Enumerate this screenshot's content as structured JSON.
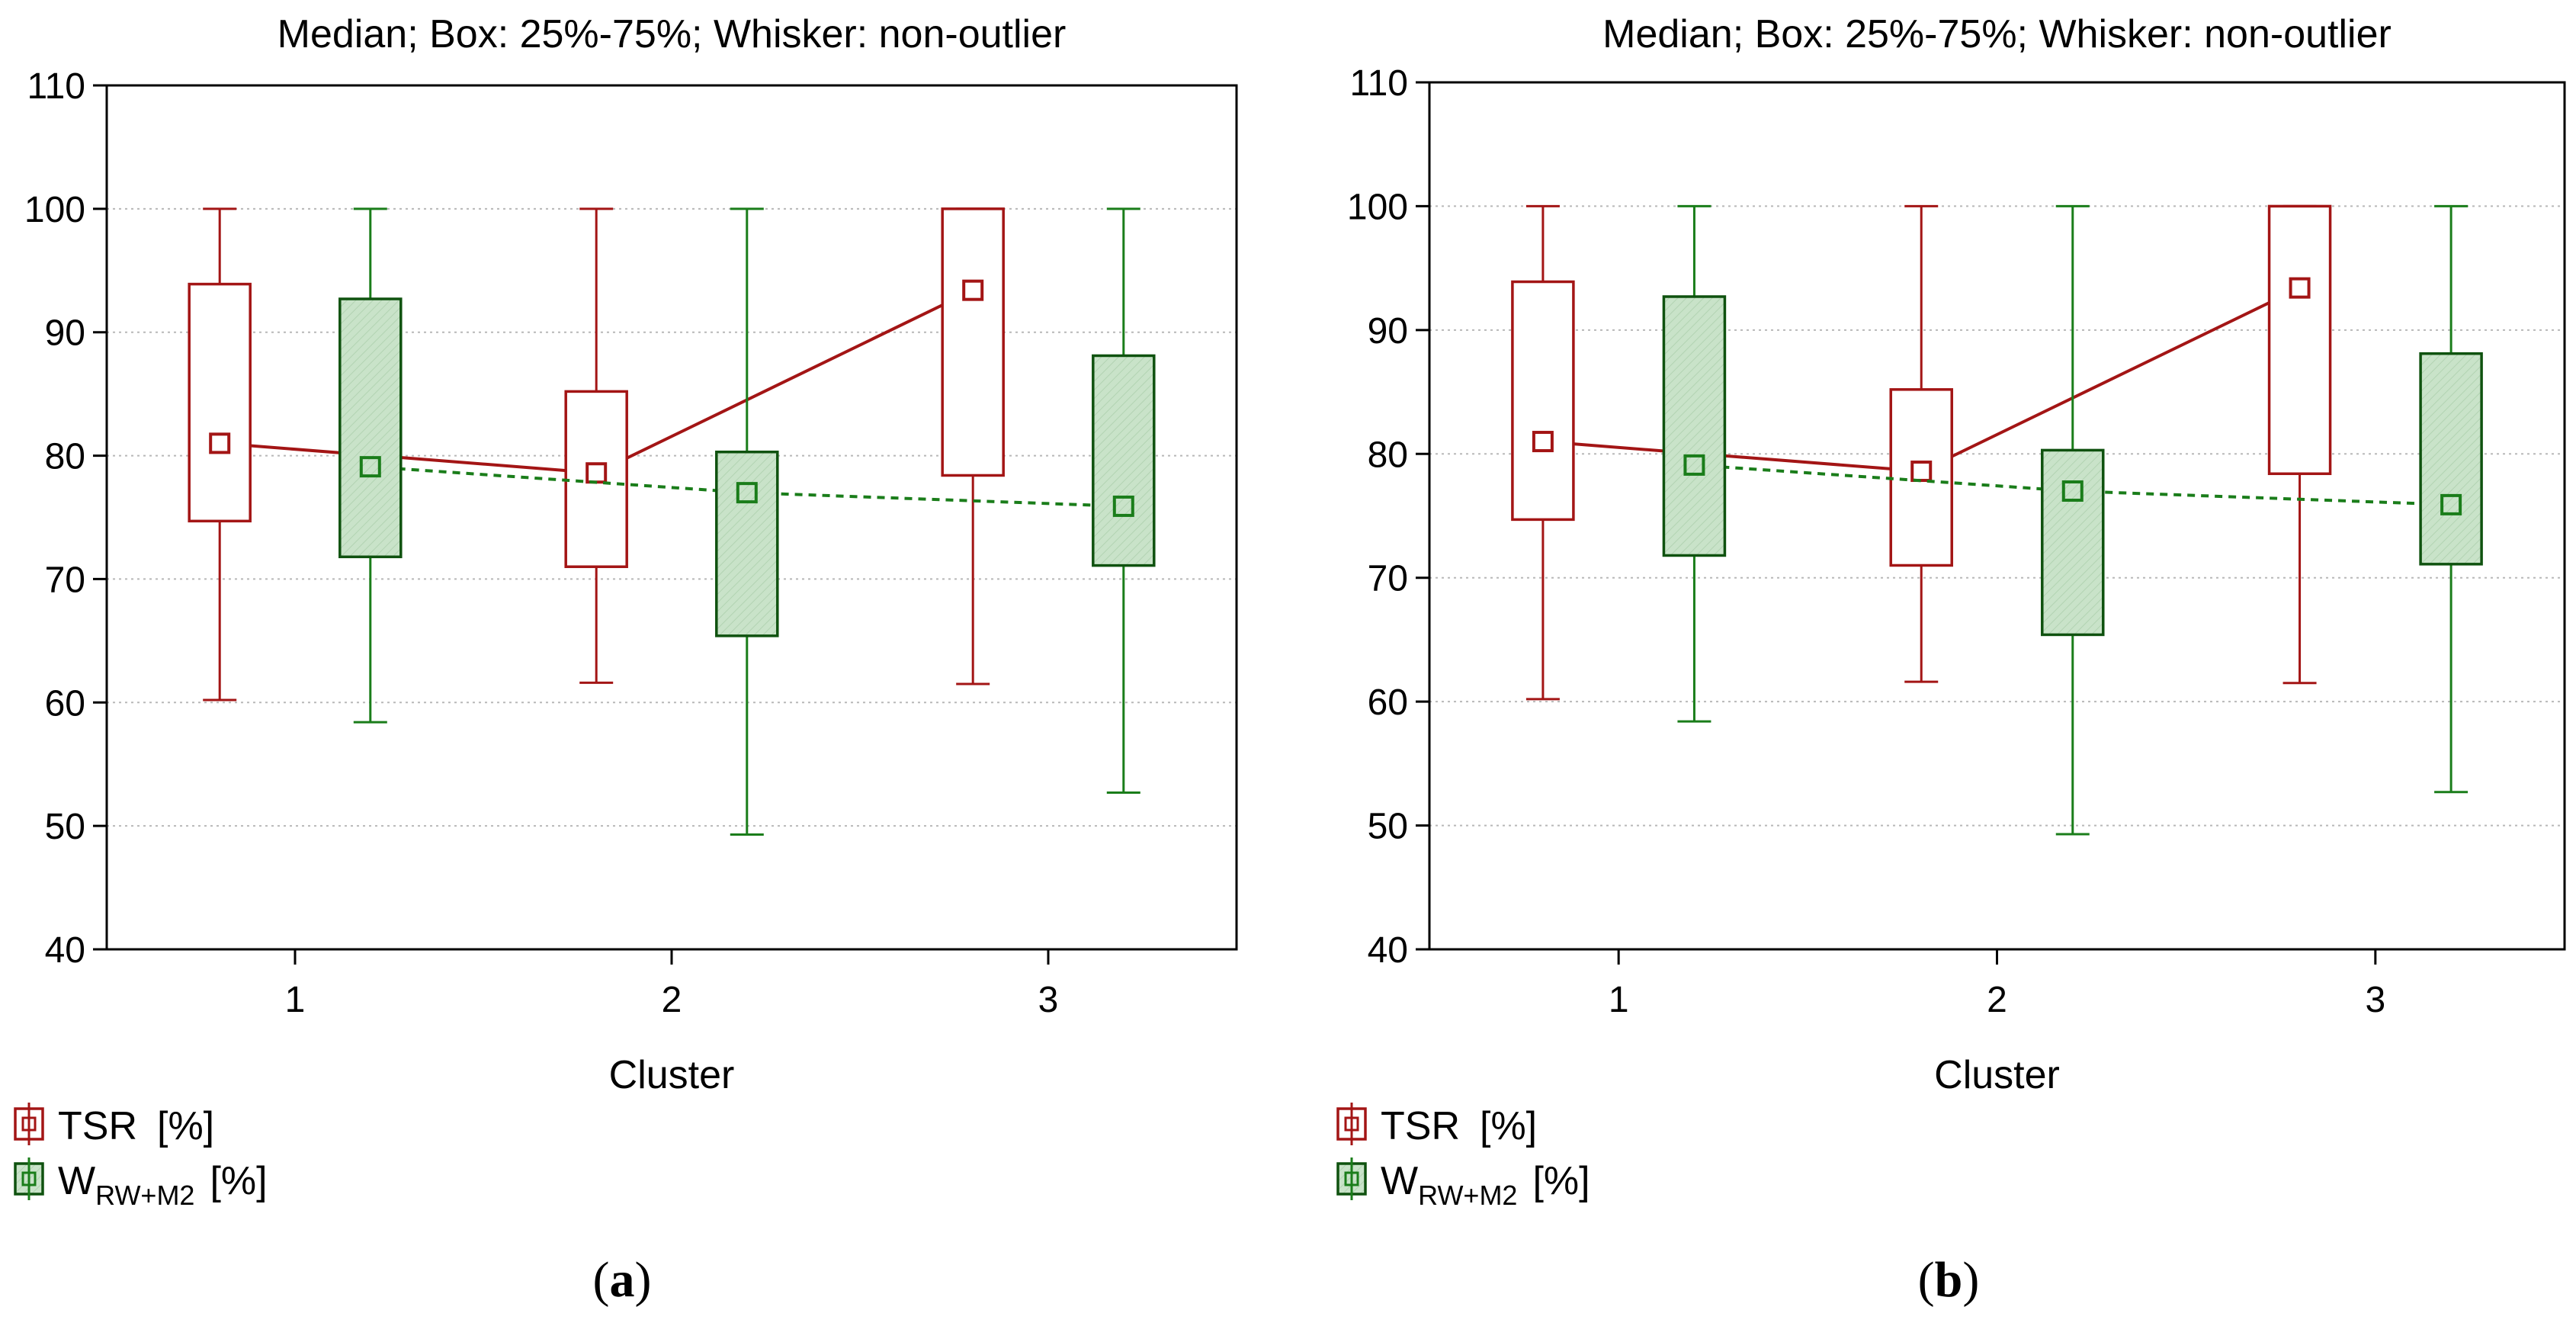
{
  "colors": {
    "tsr": "#a31515",
    "tsr_fill": "#ffffff",
    "w": "#1a7d1a",
    "w_edge": "#0f520f",
    "w_fill": "#c9e3c9",
    "grid": "#b8b8b8",
    "axis": "#000000"
  },
  "chart_data": [
    {
      "type": "box",
      "panel_label": "(a)",
      "panel_letter": "a",
      "title": "Median; Box: 25%-75%; Whisker: non-outlier",
      "xlabel": "Cluster",
      "ylabel": "",
      "ylim": [
        40,
        110
      ],
      "yticks": [
        40,
        50,
        60,
        70,
        80,
        90,
        100,
        110
      ],
      "categories": [
        "1",
        "2",
        "3"
      ],
      "grid": true,
      "legend_position": "bottom-left",
      "series": [
        {
          "name": "TSR",
          "name_sub": "",
          "unit": "[%]",
          "line_style": "solid",
          "median": [
            81.0,
            78.6,
            93.4
          ],
          "q1": [
            74.7,
            71.0,
            78.4
          ],
          "q3": [
            93.9,
            85.2,
            100.0
          ],
          "min": [
            60.2,
            61.6,
            61.5
          ],
          "max": [
            100.0,
            100.0,
            100.0
          ]
        },
        {
          "name": "W",
          "name_sub": "RW+M2",
          "unit": "[%]",
          "line_style": "dashed",
          "median": [
            79.1,
            77.0,
            75.9
          ],
          "q1": [
            71.8,
            65.4,
            71.1
          ],
          "q3": [
            92.7,
            80.3,
            88.1
          ],
          "min": [
            58.4,
            49.3,
            52.7
          ],
          "max": [
            100.0,
            100.0,
            100.0
          ]
        }
      ]
    },
    {
      "type": "box",
      "panel_label": "(b)",
      "panel_letter": "b",
      "title": "Median; Box: 25%-75%; Whisker: non-outlier",
      "xlabel": "Cluster",
      "ylabel": "",
      "ylim": [
        40,
        110
      ],
      "yticks": [
        40,
        50,
        60,
        70,
        80,
        90,
        100,
        110
      ],
      "categories": [
        "1",
        "2",
        "3"
      ],
      "grid": true,
      "legend_position": "bottom-left",
      "series": [
        {
          "name": "TSR",
          "name_sub": "",
          "unit": "[%]",
          "line_style": "solid",
          "median": [
            81.0,
            78.6,
            93.4
          ],
          "q1": [
            74.7,
            71.0,
            78.4
          ],
          "q3": [
            93.9,
            85.2,
            100.0
          ],
          "min": [
            60.2,
            61.6,
            61.5
          ],
          "max": [
            100.0,
            100.0,
            100.0
          ]
        },
        {
          "name": "W",
          "name_sub": "RW+M2",
          "unit": "[%]",
          "line_style": "dashed",
          "median": [
            79.1,
            77.0,
            75.9
          ],
          "q1": [
            71.8,
            65.4,
            71.1
          ],
          "q3": [
            92.7,
            80.3,
            88.1
          ],
          "min": [
            58.4,
            49.3,
            52.7
          ],
          "max": [
            100.0,
            100.0,
            100.0
          ]
        }
      ]
    }
  ]
}
